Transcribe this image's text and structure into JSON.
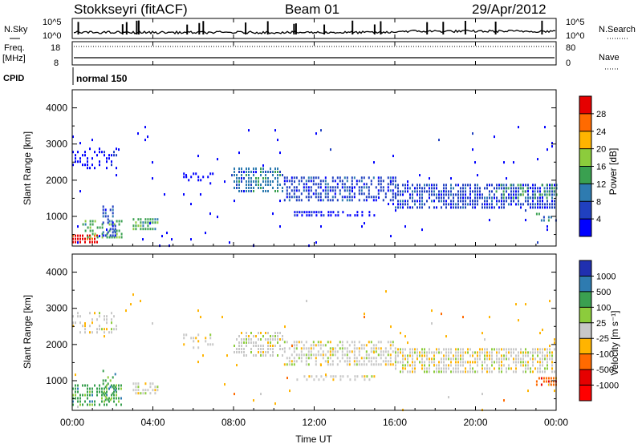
{
  "header": {
    "station": "Stokkseyri (fitACF)",
    "beam": "Beam 01",
    "date": "29/Apr/2012"
  },
  "strips": {
    "nsky_label": "N.Sky",
    "nsky_ticks": [
      "10^5",
      "10^0"
    ],
    "nsearch_label": "N.Search",
    "nsearch_ticks": [
      "10^5",
      "10^0"
    ],
    "freq_label": "Freq.",
    "freq_unit": "[MHz]",
    "freq_ticks": [
      "18",
      "8"
    ],
    "nave_label": "Nave",
    "nave_ticks": [
      "80",
      "0"
    ],
    "cpid_label": "CPID",
    "cpid_mode": "normal 150"
  },
  "chart_data": [
    {
      "type": "heatmap",
      "panel": "power",
      "ylabel": "Slant Range [km]",
      "yticks": [
        1000,
        2000,
        3000,
        4000
      ],
      "ylim": [
        180,
        4500
      ],
      "xlim": [
        0,
        24
      ],
      "xticks": [
        "00:00",
        "04:00",
        "08:00",
        "12:00",
        "16:00",
        "20:00",
        "00:00"
      ],
      "colorbar": {
        "label": "Power [dB]",
        "ticks": [
          "28",
          "24",
          "20",
          "16",
          "12",
          "8",
          "4"
        ],
        "colors": [
          "#e60000",
          "#ff6a00",
          "#ffb400",
          "#8ccc3c",
          "#3aa050",
          "#2e7bb0",
          "#2040c0",
          "#0000ff"
        ]
      },
      "regions": [
        {
          "t0": 0.0,
          "t1": 2.2,
          "r0": 2300,
          "r1": 2900,
          "level": 7,
          "density": 0.35
        },
        {
          "t0": 0.0,
          "t1": 1.2,
          "r0": 300,
          "r1": 500,
          "level": 0,
          "density": 0.9
        },
        {
          "t0": 0.5,
          "t1": 2.5,
          "r0": 400,
          "r1": 900,
          "level": 4,
          "density": 0.5
        },
        {
          "t0": 1.5,
          "t1": 2.2,
          "r0": 500,
          "r1": 1300,
          "level": 6,
          "density": 0.45
        },
        {
          "t0": 3.0,
          "t1": 4.2,
          "r0": 600,
          "r1": 950,
          "level": 4,
          "density": 0.75
        },
        {
          "t0": 5.5,
          "t1": 7.0,
          "r0": 1900,
          "r1": 2300,
          "level": 7,
          "density": 0.3
        },
        {
          "t0": 8.0,
          "t1": 10.5,
          "r0": 1700,
          "r1": 2350,
          "level": 5,
          "density": 0.6
        },
        {
          "t0": 10.5,
          "t1": 16.0,
          "r0": 1400,
          "r1": 2100,
          "level": 6,
          "density": 0.6
        },
        {
          "t0": 11.0,
          "t1": 15.0,
          "r0": 1050,
          "r1": 1150,
          "level": 7,
          "density": 0.5
        },
        {
          "t0": 16.0,
          "t1": 24.0,
          "r0": 1250,
          "r1": 1900,
          "level": 6,
          "density": 0.7
        },
        {
          "t0": 21.0,
          "t1": 24.0,
          "r0": 1500,
          "r1": 1900,
          "level": 4,
          "density": 0.35
        },
        {
          "t0": 23.0,
          "t1": 24.0,
          "r0": 900,
          "r1": 1100,
          "level": 5,
          "density": 0.6
        },
        {
          "t0": 0.0,
          "t1": 24.0,
          "r0": 200,
          "r1": 3500,
          "level": 7,
          "density": 0.012
        }
      ]
    },
    {
      "type": "heatmap",
      "panel": "velocity",
      "ylabel": "Slant Range [km]",
      "yticks": [
        1000,
        2000,
        3000,
        4000
      ],
      "ylim": [
        180,
        4500
      ],
      "xlim": [
        0,
        24
      ],
      "xlabel": "Time UT",
      "xticks": [
        "00:00",
        "04:00",
        "08:00",
        "12:00",
        "16:00",
        "20:00",
        "00:00"
      ],
      "colorbar": {
        "label": "Velocity [m s⁻¹]",
        "ticks": [
          "1000",
          "500",
          "100",
          "25",
          "-25",
          "-100",
          "-500",
          "-1000"
        ],
        "colors": [
          "#2030b0",
          "#2e7bb0",
          "#3aa050",
          "#8ccc3c",
          "#c8c8c8",
          "#ffb400",
          "#ff6a00",
          "#e60000",
          "#ff0000"
        ]
      },
      "regions": [
        {
          "t0": 0.0,
          "t1": 2.2,
          "r0": 2300,
          "r1": 2900,
          "level": 4,
          "density": 0.3
        },
        {
          "t0": 0.0,
          "t1": 2.5,
          "r0": 300,
          "r1": 900,
          "level": 2,
          "density": 0.6
        },
        {
          "t0": 1.5,
          "t1": 2.2,
          "r0": 500,
          "r1": 1300,
          "level": 2,
          "density": 0.35
        },
        {
          "t0": 3.0,
          "t1": 4.2,
          "r0": 600,
          "r1": 950,
          "level": 4,
          "density": 0.7
        },
        {
          "t0": 5.5,
          "t1": 7.0,
          "r0": 1900,
          "r1": 2300,
          "level": 4,
          "density": 0.25
        },
        {
          "t0": 8.0,
          "t1": 10.5,
          "r0": 1700,
          "r1": 2350,
          "level": 4,
          "density": 0.6
        },
        {
          "t0": 10.5,
          "t1": 16.0,
          "r0": 1400,
          "r1": 2100,
          "level": 4,
          "density": 0.6
        },
        {
          "t0": 11.0,
          "t1": 15.0,
          "r0": 1050,
          "r1": 1150,
          "level": 4,
          "density": 0.45
        },
        {
          "t0": 16.0,
          "t1": 24.0,
          "r0": 1250,
          "r1": 1900,
          "level": 4,
          "density": 0.7
        },
        {
          "t0": 23.0,
          "t1": 24.0,
          "r0": 900,
          "r1": 1100,
          "level": 6,
          "density": 0.65
        },
        {
          "t0": 0.0,
          "t1": 24.0,
          "r0": 200,
          "r1": 3500,
          "level": 5,
          "density": 0.01
        }
      ]
    }
  ]
}
